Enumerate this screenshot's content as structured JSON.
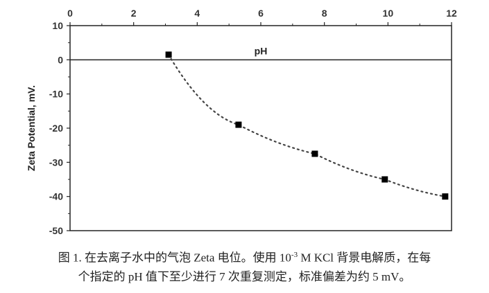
{
  "chart_data": {
    "type": "scatter",
    "xlabel": "pH",
    "ylabel": "Zeta Potential, mV.",
    "xlim": [
      0,
      12
    ],
    "ylim": [
      -50,
      10
    ],
    "xticks": [
      "0",
      "2",
      "4",
      "6",
      "8",
      "10",
      "12"
    ],
    "yticks": [
      "10",
      "0",
      "-10",
      "-20",
      "-30",
      "-40",
      "-50"
    ],
    "x_axis_position": "top",
    "grid": false,
    "trendline": "dotted",
    "series": [
      {
        "marker": "square",
        "color": "#000000",
        "points": [
          {
            "x": 3.1,
            "y": 1.5
          },
          {
            "x": 5.3,
            "y": -19
          },
          {
            "x": 7.7,
            "y": -27.5
          },
          {
            "x": 9.9,
            "y": -35
          },
          {
            "x": 11.8,
            "y": -40
          }
        ]
      }
    ]
  },
  "caption": {
    "line1_prefix": "图 1.  在去离子水中的气泡 Zeta 电位。使用 10",
    "line1_sup": "-3",
    "line1_suffix": " M KCl 背景电解质，在每",
    "line2": "个指定的 pH 值下至少进行 7 次重复测定，标准偏差为约 5 mV。"
  }
}
